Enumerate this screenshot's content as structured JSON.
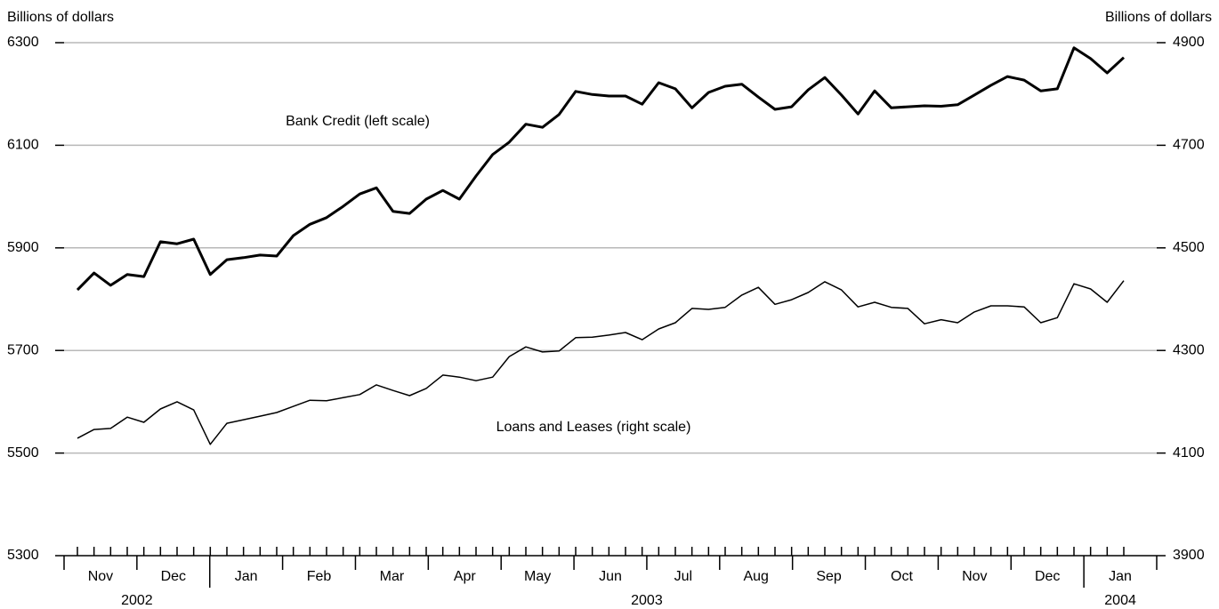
{
  "chart_data": {
    "type": "line",
    "ylabel": "Billions of dollars",
    "y2label": "Billions of dollars",
    "categories": [
      null,
      null,
      null,
      null,
      null,
      null,
      null,
      null,
      null,
      null,
      null,
      null,
      null,
      null,
      null,
      null,
      null,
      null,
      null,
      null,
      null,
      null,
      null,
      null,
      null,
      null,
      null,
      null,
      null,
      null,
      null,
      null,
      null,
      null,
      null,
      null,
      null,
      null,
      null,
      null,
      null,
      null,
      null,
      null,
      null,
      null,
      null,
      null,
      null,
      null,
      null,
      null,
      null,
      null,
      null,
      null,
      null,
      null,
      null,
      null,
      null,
      null,
      null,
      null
    ],
    "year_groups": [
      {
        "year": "2002",
        "months": [
          "Nov",
          "Dec"
        ]
      },
      {
        "year": "2003",
        "months": [
          "Jan",
          "Feb",
          "Mar",
          "Apr",
          "May",
          "Jun",
          "Jul",
          "Aug",
          "Sep",
          "Oct",
          "Nov",
          "Dec"
        ]
      },
      {
        "year": "2004",
        "months": [
          "Jan"
        ]
      }
    ],
    "ylim": [
      5300,
      6300
    ],
    "yticks": [
      5300,
      5500,
      5700,
      5900,
      6100,
      6300
    ],
    "y2lim": [
      3900,
      4900
    ],
    "y2ticks": [
      3900,
      4100,
      4300,
      4500,
      4700,
      4900
    ],
    "grid": true,
    "series": [
      {
        "name": "Bank Credit (left scale)",
        "color": "#000000",
        "linewidth": 3,
        "values": [
          5818,
          5851,
          5827,
          5848,
          5844,
          5912,
          5908,
          5917,
          5848,
          5877,
          5881,
          5886,
          5884,
          5924,
          5946,
          5959,
          5981,
          6005,
          6017,
          5971,
          5967,
          5995,
          6012,
          5995,
          6040,
          6082,
          6106,
          6141,
          6135,
          6160,
          6205,
          6199,
          6196,
          6196,
          6180,
          6222,
          6210,
          6173,
          6203,
          6215,
          6219,
          6194,
          6170,
          6175,
          6208,
          6232,
          6198,
          6161,
          6206,
          6173,
          6175,
          6177,
          6176,
          6179,
          6198,
          6217,
          6234,
          6227,
          6206,
          6210,
          6290,
          6269,
          6241,
          6271
        ]
      },
      {
        "name": "Loans and Leases (right scale)",
        "color": "#000000",
        "linewidth": 1.5,
        "axis": "y2",
        "values": [
          4129,
          4146,
          4148,
          4170,
          4160,
          4186,
          4200,
          4184,
          4117,
          4158,
          4165,
          4172,
          4179,
          4191,
          4203,
          4202,
          4208,
          4214,
          4233,
          4222,
          4212,
          4226,
          4252,
          4248,
          4241,
          4248,
          4288,
          4307,
          4297,
          4299,
          4325,
          4326,
          4330,
          4335,
          4321,
          4342,
          4354,
          4382,
          4380,
          4384,
          4408,
          4423,
          4390,
          4399,
          4413,
          4434,
          4418,
          4385,
          4394,
          4384,
          4382,
          4352,
          4360,
          4354,
          4375,
          4387,
          4387,
          4385,
          4354,
          4364,
          4430,
          4420,
          4394,
          4436
        ]
      }
    ]
  }
}
